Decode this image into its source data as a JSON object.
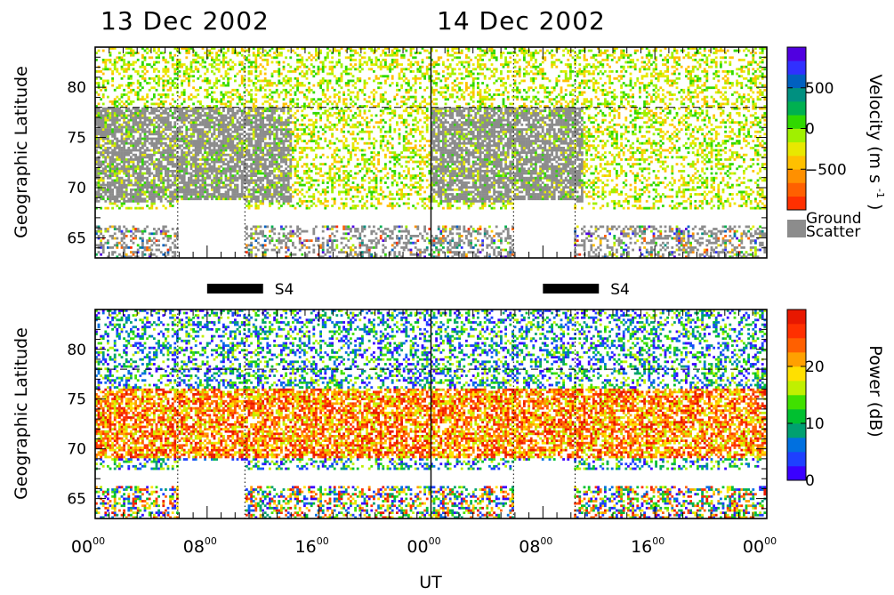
{
  "figure": {
    "dates": [
      "13 Dec 2002",
      "14 Dec 2002"
    ],
    "x_axis_label": "UT",
    "x_ticks": [
      {
        "hh": "00",
        "mm": "00",
        "ut_hours": 0
      },
      {
        "hh": "08",
        "mm": "00",
        "ut_hours": 8
      },
      {
        "hh": "16",
        "mm": "00",
        "ut_hours": 16
      },
      {
        "hh": "00",
        "mm": "00",
        "ut_hours": 24
      },
      {
        "hh": "08",
        "mm": "00",
        "ut_hours": 32
      },
      {
        "hh": "16",
        "mm": "00",
        "ut_hours": 40
      },
      {
        "hh": "00",
        "mm": "00",
        "ut_hours": 48
      }
    ],
    "s4_bars": [
      {
        "label": "S4",
        "start_ut_hours": 8.0,
        "end_ut_hours": 12.0
      },
      {
        "label": "S4",
        "start_ut_hours": 32.0,
        "end_ut_hours": 36.0
      }
    ]
  },
  "chart_data": [
    {
      "type": "heatmap",
      "name": "velocity-panel",
      "ylabel": "Geographic Latitude",
      "xlim_ut_hours": [
        0,
        48
      ],
      "ylim_deg": [
        63,
        84
      ],
      "y_ticks": [
        65,
        70,
        75,
        80
      ],
      "reference_latitude_deg": 78,
      "colorbar": {
        "title": "Velocity",
        "unit_base": "(m s",
        "unit_exp": "-1",
        "unit_close": ")",
        "range": [
          -1000,
          1000
        ],
        "tick_values": [
          500,
          0,
          -500
        ],
        "tick_labels": [
          "500",
          "0",
          "−500"
        ],
        "colors": [
          "#ff3000",
          "#ff6000",
          "#ff9000",
          "#ffc000",
          "#e8e800",
          "#a0f000",
          "#30d800",
          "#00b050",
          "#009080",
          "#0060c0",
          "#3030ff",
          "#5000e0"
        ],
        "ground_scatter_label_1": "Ground",
        "ground_scatter_label_2": "Scatter",
        "ground_scatter_color": "#8c8c8c"
      }
    },
    {
      "type": "heatmap",
      "name": "power-panel",
      "ylabel": "Geographic Latitude",
      "xlim_ut_hours": [
        0,
        48
      ],
      "ylim_deg": [
        63,
        84
      ],
      "y_ticks": [
        65,
        70,
        75,
        80
      ],
      "reference_latitude_deg": 78,
      "colorbar": {
        "title": "Power",
        "unit": "(dB)",
        "range": [
          0,
          30
        ],
        "tick_values": [
          20,
          10,
          0
        ],
        "tick_labels": [
          "20",
          "10",
          "0"
        ],
        "colors": [
          "#3a00ff",
          "#1e40ff",
          "#0070e0",
          "#00a070",
          "#00c030",
          "#40e000",
          "#c0f000",
          "#ffe000",
          "#ffa000",
          "#ff6000",
          "#ff3000",
          "#e81800"
        ]
      }
    }
  ]
}
